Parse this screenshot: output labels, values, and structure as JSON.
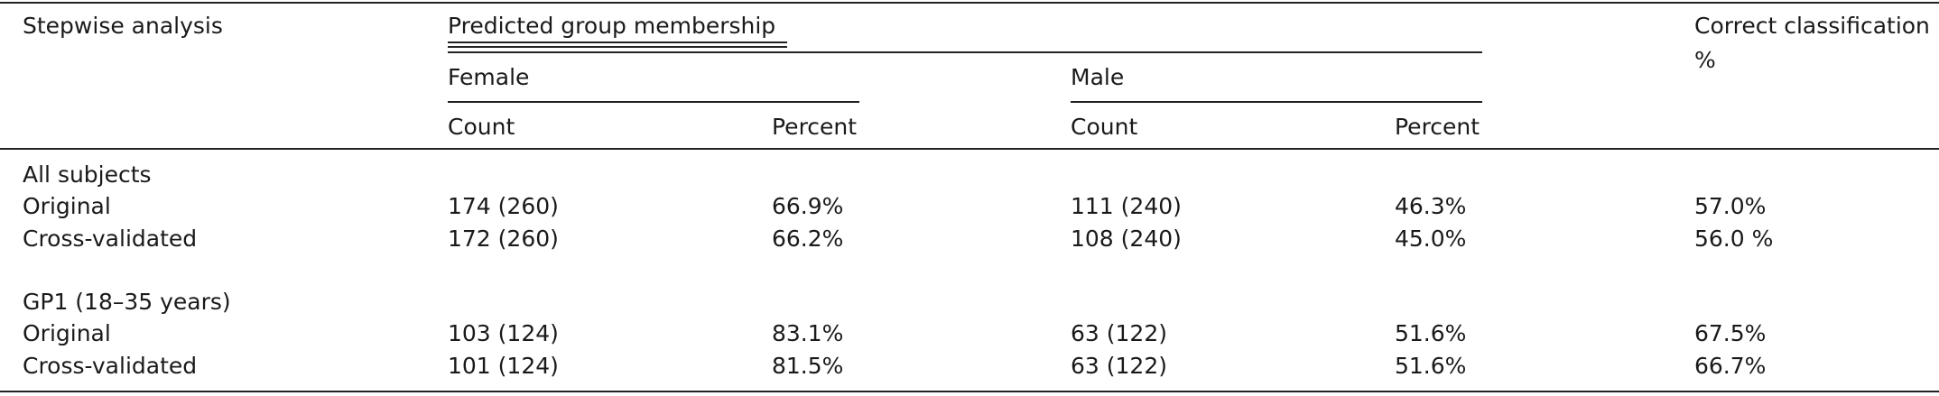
{
  "header": {
    "stub": "Stepwise analysis",
    "predicted": "Predicted group membership",
    "female": "Female",
    "male": "Male",
    "count_f": "Count",
    "percent_f": "Percent",
    "count_m": "Count",
    "percent_m": "Percent",
    "correct_line1": "Correct classification",
    "correct_line2": "%"
  },
  "sections": [
    {
      "title": "All subjects",
      "rows": [
        {
          "label": "Original",
          "f_count": "174 (260)",
          "f_pct": "66.9%",
          "m_count": "111 (240)",
          "m_pct": "46.3%",
          "correct": "57.0%"
        },
        {
          "label": "Cross-validated",
          "f_count": "172 (260)",
          "f_pct": "66.2%",
          "m_count": "108 (240)",
          "m_pct": "45.0%",
          "correct": "56.0 %"
        }
      ]
    },
    {
      "title": "GP1 (18–35 years)",
      "rows": [
        {
          "label": "Original",
          "f_count": "103 (124)",
          "f_pct": "83.1%",
          "m_count": "63 (122)",
          "m_pct": "51.6%",
          "correct": "67.5%"
        },
        {
          "label": "Cross-validated",
          "f_count": "101 (124)",
          "f_pct": "81.5%",
          "m_count": "63 (122)",
          "m_pct": "51.6%",
          "correct": "66.7%"
        }
      ]
    }
  ]
}
